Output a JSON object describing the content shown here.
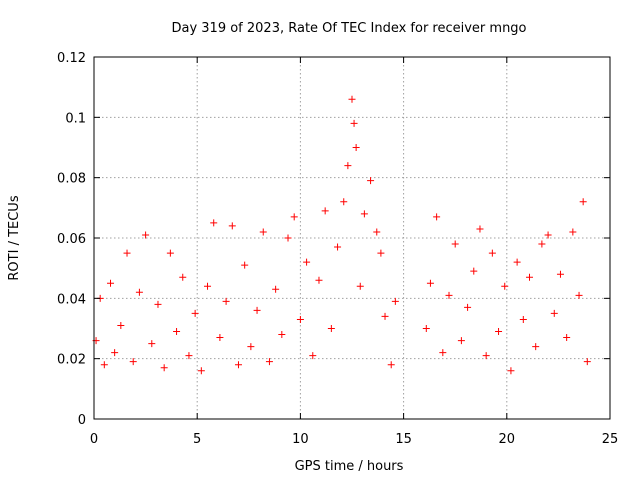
{
  "chart_data": {
    "type": "scatter",
    "title": "Day 319 of 2023, Rate Of TEC Index for receiver mngo",
    "xlabel": "GPS time / hours",
    "ylabel": "ROTI / TECUs",
    "xlim": [
      0,
      25
    ],
    "ylim": [
      0,
      0.12
    ],
    "xticks": [
      0,
      5,
      10,
      15,
      20,
      25
    ],
    "xtick_labels": [
      "0",
      "5",
      "10",
      "15",
      "20",
      "25"
    ],
    "yticks": [
      0,
      0.02,
      0.04,
      0.06,
      0.08,
      0.1,
      0.12
    ],
    "ytick_labels": [
      "0",
      "0.02",
      "0.04",
      "0.06",
      "0.08",
      "0.1",
      "0.12"
    ],
    "grid": true,
    "marker": "+",
    "color": "#ff0000",
    "data_gap_hours": [
      14.8,
      15.9
    ],
    "series": [
      {
        "name": "ROTI",
        "x": [
          0.1,
          0.3,
          0.5,
          0.8,
          1.0,
          1.3,
          1.6,
          1.9,
          2.2,
          2.5,
          2.8,
          3.1,
          3.4,
          3.7,
          4.0,
          4.3,
          4.6,
          4.9,
          5.2,
          5.5,
          5.8,
          6.1,
          6.4,
          6.7,
          7.0,
          7.3,
          7.6,
          7.9,
          8.2,
          8.5,
          8.8,
          9.1,
          9.4,
          9.7,
          10.0,
          10.3,
          10.6,
          10.9,
          11.2,
          11.5,
          11.8,
          12.1,
          12.3,
          12.5,
          12.6,
          12.7,
          12.9,
          13.1,
          13.4,
          13.7,
          13.9,
          14.1,
          14.4,
          14.6,
          16.1,
          16.3,
          16.6,
          16.9,
          17.2,
          17.5,
          17.8,
          18.1,
          18.4,
          18.7,
          19.0,
          19.3,
          19.6,
          19.9,
          20.2,
          20.5,
          20.8,
          21.1,
          21.4,
          21.7,
          22.0,
          22.3,
          22.6,
          22.9,
          23.2,
          23.5,
          23.7,
          23.9
        ],
        "y": [
          0.026,
          0.04,
          0.018,
          0.045,
          0.022,
          0.031,
          0.055,
          0.019,
          0.042,
          0.061,
          0.025,
          0.038,
          0.017,
          0.055,
          0.029,
          0.047,
          0.021,
          0.035,
          0.016,
          0.044,
          0.065,
          0.027,
          0.039,
          0.064,
          0.018,
          0.051,
          0.024,
          0.036,
          0.062,
          0.019,
          0.043,
          0.028,
          0.06,
          0.067,
          0.033,
          0.052,
          0.021,
          0.046,
          0.069,
          0.03,
          0.057,
          0.072,
          0.084,
          0.106,
          0.098,
          0.09,
          0.044,
          0.068,
          0.079,
          0.062,
          0.055,
          0.034,
          0.018,
          0.039,
          0.03,
          0.045,
          0.067,
          0.022,
          0.041,
          0.058,
          0.026,
          0.037,
          0.049,
          0.063,
          0.021,
          0.055,
          0.029,
          0.044,
          0.016,
          0.052,
          0.033,
          0.047,
          0.024,
          0.058,
          0.061,
          0.035,
          0.048,
          0.027,
          0.062,
          0.041,
          0.072,
          0.019
        ]
      }
    ]
  }
}
